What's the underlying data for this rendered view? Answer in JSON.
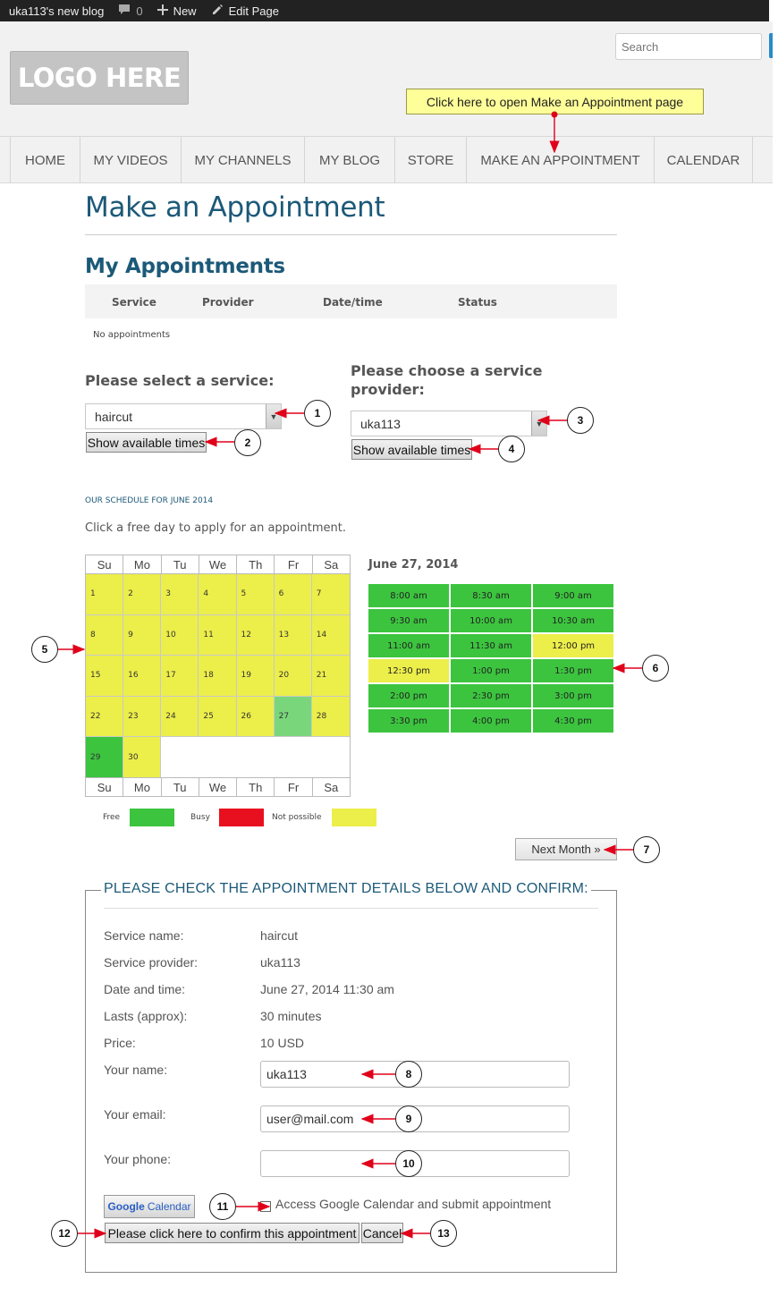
{
  "admin_bar": {
    "site_name": "uka113's new blog",
    "comments_count": "0",
    "new_label": "New",
    "edit_label": "Edit Page"
  },
  "header": {
    "logo_text": "LOGO HERE",
    "search_placeholder": "Search"
  },
  "nav": {
    "items": [
      "HOME",
      "MY VIDEOS",
      "MY CHANNELS",
      "MY BLOG",
      "STORE",
      "MAKE AN APPOINTMENT",
      "CALENDAR"
    ]
  },
  "callout": "Click here to open Make an Appointment page",
  "page": {
    "title": "Make an Appointment",
    "my_appointments_title": "My Appointments",
    "table_headers": [
      "Service",
      "Provider",
      "Date/time",
      "Status"
    ],
    "no_appointments": "No appointments"
  },
  "service_select": {
    "label": "Please select a service:",
    "value": "haircut",
    "button": "Show available times"
  },
  "provider_select": {
    "label_line1": "Please choose a service",
    "label_line2": "provider:",
    "value": "uka113",
    "button": "Show available times"
  },
  "schedule": {
    "title": "OUR SCHEDULE FOR JUNE 2014",
    "hint": "Click a free day to apply for an appointment.",
    "day_names": [
      "Su",
      "Mo",
      "Tu",
      "We",
      "Th",
      "Fr",
      "Sa"
    ],
    "weeks": [
      [
        {
          "d": "1",
          "s": "notpossible"
        },
        {
          "d": "2",
          "s": "notpossible"
        },
        {
          "d": "3",
          "s": "notpossible"
        },
        {
          "d": "4",
          "s": "notpossible"
        },
        {
          "d": "5",
          "s": "notpossible"
        },
        {
          "d": "6",
          "s": "notpossible"
        },
        {
          "d": "7",
          "s": "notpossible"
        }
      ],
      [
        {
          "d": "8",
          "s": "notpossible"
        },
        {
          "d": "9",
          "s": "notpossible"
        },
        {
          "d": "10",
          "s": "notpossible"
        },
        {
          "d": "11",
          "s": "notpossible"
        },
        {
          "d": "12",
          "s": "notpossible"
        },
        {
          "d": "13",
          "s": "notpossible"
        },
        {
          "d": "14",
          "s": "notpossible"
        }
      ],
      [
        {
          "d": "15",
          "s": "notpossible"
        },
        {
          "d": "16",
          "s": "notpossible"
        },
        {
          "d": "17",
          "s": "notpossible"
        },
        {
          "d": "18",
          "s": "notpossible"
        },
        {
          "d": "19",
          "s": "notpossible"
        },
        {
          "d": "20",
          "s": "notpossible"
        },
        {
          "d": "21",
          "s": "notpossible"
        }
      ],
      [
        {
          "d": "22",
          "s": "notpossible"
        },
        {
          "d": "23",
          "s": "notpossible"
        },
        {
          "d": "24",
          "s": "notpossible"
        },
        {
          "d": "25",
          "s": "notpossible"
        },
        {
          "d": "26",
          "s": "notpossible"
        },
        {
          "d": "27",
          "s": "selected"
        },
        {
          "d": "28",
          "s": "notpossible"
        }
      ],
      [
        {
          "d": "29",
          "s": "free"
        },
        {
          "d": "30",
          "s": "notpossible"
        },
        {
          "d": "",
          "s": "empty"
        },
        {
          "d": "",
          "s": "empty"
        },
        {
          "d": "",
          "s": "empty"
        },
        {
          "d": "",
          "s": "empty"
        },
        {
          "d": "",
          "s": "empty"
        }
      ]
    ],
    "legend": {
      "free": "Free",
      "busy": "Busy",
      "not_possible": "Not possible"
    },
    "legend_colors": {
      "free": "#3cc43f",
      "busy": "#e8101e",
      "not_possible": "#ecee4a"
    },
    "selected_date": "June 27, 2014",
    "time_slots": [
      {
        "t": "8:00 am",
        "s": "free"
      },
      {
        "t": "8:30 am",
        "s": "free"
      },
      {
        "t": "9:00 am",
        "s": "free"
      },
      {
        "t": "9:30 am",
        "s": "free"
      },
      {
        "t": "10:00 am",
        "s": "free"
      },
      {
        "t": "10:30 am",
        "s": "free"
      },
      {
        "t": "11:00 am",
        "s": "free"
      },
      {
        "t": "11:30 am",
        "s": "free"
      },
      {
        "t": "12:00 pm",
        "s": "notpossible"
      },
      {
        "t": "12:30 pm",
        "s": "notpossible"
      },
      {
        "t": "1:00 pm",
        "s": "free"
      },
      {
        "t": "1:30 pm",
        "s": "free"
      },
      {
        "t": "2:00 pm",
        "s": "free"
      },
      {
        "t": "2:30 pm",
        "s": "free"
      },
      {
        "t": "3:00 pm",
        "s": "free"
      },
      {
        "t": "3:30 pm",
        "s": "free"
      },
      {
        "t": "4:00 pm",
        "s": "free"
      },
      {
        "t": "4:30 pm",
        "s": "free"
      }
    ],
    "next_month": "Next Month »"
  },
  "confirm": {
    "legend": "PLEASE CHECK THE APPOINTMENT DETAILS BELOW AND CONFIRM:",
    "details": [
      {
        "label": "Service name:",
        "value": "haircut"
      },
      {
        "label": "Service provider:",
        "value": "uka113"
      },
      {
        "label": "Date and time:",
        "value": "June 27, 2014 11:30 am"
      },
      {
        "label": "Lasts (approx):",
        "value": "30 minutes"
      },
      {
        "label": "Price:",
        "value": "10 USD"
      }
    ],
    "name_label": "Your name:",
    "name_value": "uka113",
    "email_label": "Your email:",
    "email_value": "user@mail.com",
    "phone_label": "Your phone:",
    "phone_value": "",
    "gcal_google": "Google",
    "gcal_calendar": "Calendar",
    "gcal_checkbox_label": "Access Google Calendar and submit appointment",
    "confirm_button": "Please click here to confirm this appointment",
    "cancel_button": "Cancel"
  },
  "markers": [
    "1",
    "2",
    "3",
    "4",
    "5",
    "6",
    "7",
    "8",
    "9",
    "10",
    "11",
    "12",
    "13"
  ],
  "colors": {
    "accent": "#1c5978",
    "arrow": "#e0001a"
  }
}
